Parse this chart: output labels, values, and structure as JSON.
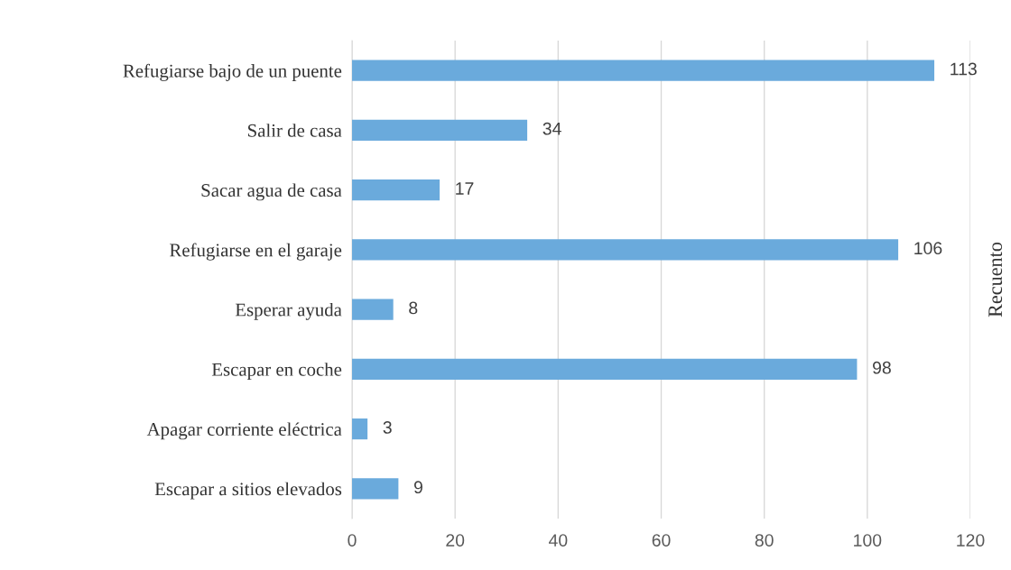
{
  "chart_data": {
    "type": "bar",
    "orientation": "horizontal",
    "ylabel": "Recuento",
    "categories": [
      "Refugiarse bajo de un puente",
      "Salir de casa",
      "Sacar agua de casa",
      "Refugiarse en el garaje",
      "Esperar ayuda",
      "Escapar en coche",
      "Apagar corriente eléctrica",
      "Escapar a sitios elevados"
    ],
    "values": [
      113,
      34,
      17,
      106,
      8,
      98,
      3,
      9
    ],
    "color": "#6aaadc",
    "xlim": [
      0,
      120
    ],
    "xticks": [
      0,
      20,
      40,
      60,
      80,
      100,
      120
    ],
    "grid": "x",
    "data_labels": true
  }
}
